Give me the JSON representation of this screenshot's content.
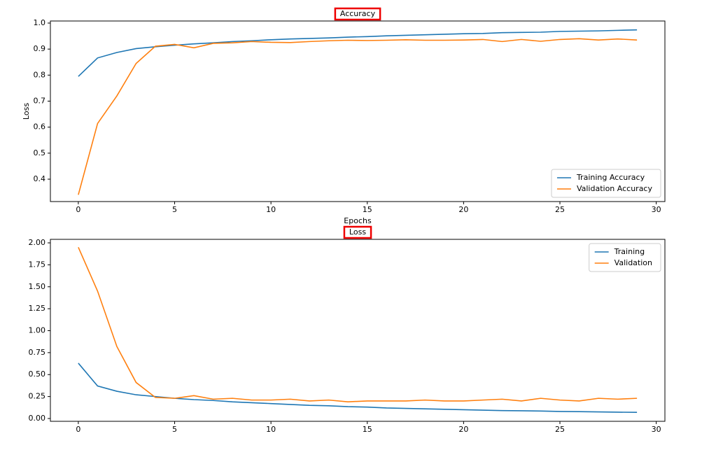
{
  "chart_data": [
    {
      "type": "line",
      "title": "Accuracy",
      "xlabel": "Epochs",
      "ylabel": "Loss",
      "x": [
        0,
        1,
        2,
        3,
        4,
        5,
        6,
        7,
        8,
        9,
        10,
        11,
        12,
        13,
        14,
        15,
        16,
        17,
        18,
        19,
        20,
        21,
        22,
        23,
        24,
        25,
        26,
        27,
        28,
        29
      ],
      "series": [
        {
          "name": "Training Accuracy",
          "color": "#1f77b4",
          "values": [
            0.795,
            0.866,
            0.887,
            0.902,
            0.909,
            0.915,
            0.92,
            0.924,
            0.929,
            0.932,
            0.936,
            0.939,
            0.941,
            0.943,
            0.946,
            0.948,
            0.951,
            0.953,
            0.955,
            0.957,
            0.959,
            0.96,
            0.963,
            0.964,
            0.965,
            0.968,
            0.969,
            0.97,
            0.972,
            0.974
          ]
        },
        {
          "name": "Validation Accuracy",
          "color": "#ff7f0e",
          "values": [
            0.34,
            0.614,
            0.72,
            0.845,
            0.911,
            0.918,
            0.905,
            0.922,
            0.924,
            0.929,
            0.926,
            0.925,
            0.929,
            0.932,
            0.934,
            0.933,
            0.934,
            0.936,
            0.934,
            0.934,
            0.935,
            0.937,
            0.929,
            0.937,
            0.93,
            0.937,
            0.94,
            0.935,
            0.939,
            0.935
          ]
        }
      ],
      "xlim": [
        -1.45,
        30.45
      ],
      "xticks": [
        0,
        5,
        10,
        15,
        20,
        25,
        30
      ],
      "ylim": [
        0.314,
        1.008
      ],
      "yticks": [
        0.4,
        0.5,
        0.6,
        0.7,
        0.8,
        0.9,
        {
          "value": 1,
          "label": "1.0"
        }
      ],
      "legend": "lower right"
    },
    {
      "type": "line",
      "title": "Loss",
      "x": [
        0,
        1,
        2,
        3,
        4,
        5,
        6,
        7,
        8,
        9,
        10,
        11,
        12,
        13,
        14,
        15,
        16,
        17,
        18,
        19,
        20,
        21,
        22,
        23,
        24,
        25,
        26,
        27,
        28,
        29
      ],
      "series": [
        {
          "name": "Training",
          "color": "#1f77b4",
          "values": [
            0.63,
            0.37,
            0.31,
            0.27,
            0.25,
            0.23,
            0.215,
            0.205,
            0.19,
            0.18,
            0.17,
            0.16,
            0.15,
            0.145,
            0.135,
            0.13,
            0.12,
            0.115,
            0.11,
            0.105,
            0.1,
            0.095,
            0.09,
            0.088,
            0.085,
            0.08,
            0.078,
            0.075,
            0.072,
            0.07
          ]
        },
        {
          "name": "Validation",
          "color": "#ff7f0e",
          "values": [
            1.95,
            1.45,
            0.82,
            0.41,
            0.24,
            0.23,
            0.26,
            0.22,
            0.23,
            0.21,
            0.21,
            0.22,
            0.2,
            0.21,
            0.19,
            0.2,
            0.2,
            0.2,
            0.21,
            0.2,
            0.2,
            0.21,
            0.22,
            0.2,
            0.23,
            0.21,
            0.2,
            0.23,
            0.22,
            0.23
          ]
        }
      ],
      "xlim": [
        -1.45,
        30.45
      ],
      "xticks": [
        0,
        5,
        10,
        15,
        20,
        25,
        30
      ],
      "ylim": [
        -0.032,
        2.04
      ],
      "yticks": [
        {
          "value": 0,
          "label": "0.00"
        },
        {
          "value": 0.25,
          "label": "0.25"
        },
        {
          "value": 0.5,
          "label": "0.50"
        },
        {
          "value": 0.75,
          "label": "0.75"
        },
        {
          "value": 1,
          "label": "1.00"
        },
        {
          "value": 1.25,
          "label": "1.25"
        },
        {
          "value": 1.5,
          "label": "1.50"
        },
        {
          "value": 1.75,
          "label": "1.75"
        },
        {
          "value": 2,
          "label": "2.00"
        }
      ],
      "legend": "upper right"
    }
  ]
}
